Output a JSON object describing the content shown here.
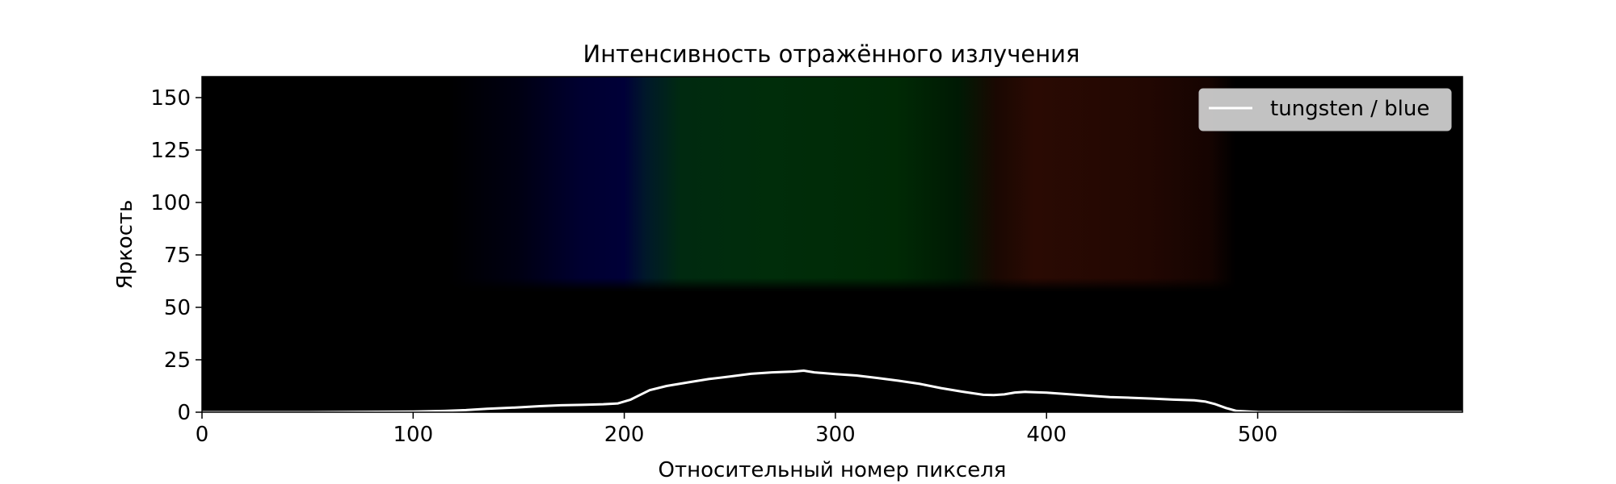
{
  "chart_data": {
    "type": "line",
    "title": "Интенсивность отражённого излучения",
    "xlabel": "Относительный номер пикселя",
    "ylabel": "Яркость",
    "xlim": [
      0,
      597
    ],
    "ylim": [
      0,
      160
    ],
    "xticks": [
      0,
      100,
      200,
      300,
      400,
      500
    ],
    "yticks": [
      0,
      25,
      50,
      75,
      100,
      125,
      150
    ],
    "background": "spectrum image: blue band ≈ 120–205, green band ≈ 205–375, red band ≈ 375–485, visible above brightness ≈ 58",
    "legend": {
      "position": "top-right",
      "entries": [
        {
          "label": "tungsten / blue",
          "color": "#ffffff"
        }
      ]
    },
    "series": [
      {
        "name": "tungsten / blue",
        "color": "#ffffff",
        "x": [
          0,
          50,
          100,
          115,
          125,
          135,
          150,
          160,
          170,
          180,
          190,
          197,
          203,
          207,
          212,
          220,
          230,
          240,
          250,
          260,
          270,
          280,
          285,
          290,
          300,
          310,
          320,
          330,
          340,
          350,
          360,
          370,
          375,
          380,
          385,
          390,
          400,
          410,
          420,
          430,
          440,
          450,
          460,
          470,
          475,
          480,
          485,
          490,
          500,
          550,
          597
        ],
        "values": [
          0,
          0,
          0.3,
          0.6,
          1.0,
          1.6,
          2.3,
          2.9,
          3.3,
          3.5,
          3.8,
          4.2,
          6.0,
          8.0,
          10.5,
          12.5,
          14.2,
          15.8,
          17.0,
          18.3,
          19.0,
          19.4,
          19.8,
          19.0,
          18.2,
          17.5,
          16.3,
          15.0,
          13.5,
          11.5,
          9.8,
          8.3,
          8.2,
          8.5,
          9.4,
          9.7,
          9.3,
          8.6,
          7.9,
          7.2,
          6.9,
          6.5,
          6.0,
          5.7,
          5.1,
          3.8,
          2.0,
          0.6,
          0.1,
          0,
          0
        ]
      }
    ]
  }
}
